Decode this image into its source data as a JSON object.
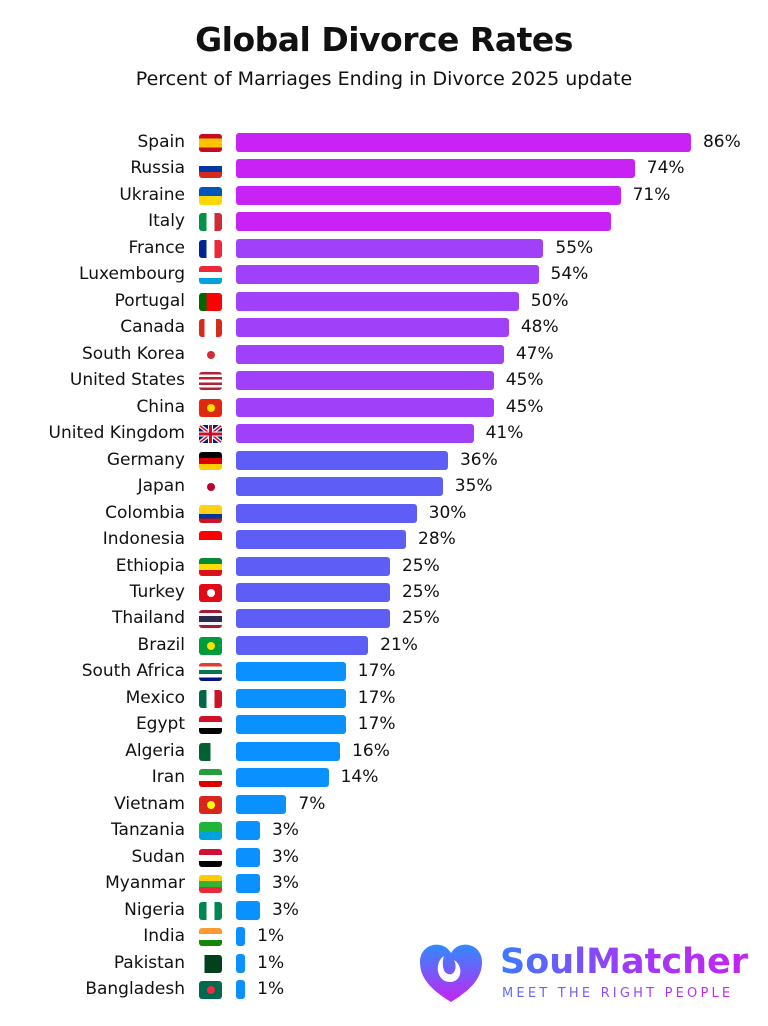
{
  "header": {
    "title": "Global Divorce Rates",
    "subtitle": "Percent of Marriages Ending in Divorce 2025 update"
  },
  "chart_data": {
    "type": "bar",
    "orientation": "horizontal",
    "title": "Global Divorce Rates",
    "subtitle": "Percent of Marriages Ending in Divorce 2025 update",
    "xlabel": "",
    "ylabel": "",
    "grid": false,
    "categories": [
      "Spain",
      "Russia",
      "Ukraine",
      "Italy",
      "France",
      "Luxembourg",
      "Portugal",
      "Canada",
      "South Korea",
      "United States",
      "China",
      "United Kingdom",
      "Germany",
      "Japan",
      "Colombia",
      "Indonesia",
      "Ethiopia",
      "Turkey",
      "Thailand",
      "Brazil",
      "South Africa",
      "Mexico",
      "Egypt",
      "Algeria",
      "Iran",
      "Vietnam",
      "Tanzania",
      "Sudan",
      "Myanmar",
      "Nigeria",
      "India",
      "Pakistan",
      "Bangladesh"
    ],
    "values": [
      86,
      74,
      71,
      69,
      55,
      54,
      50,
      48,
      47,
      45,
      45,
      41,
      36,
      35,
      30,
      28,
      25,
      25,
      25,
      21,
      17,
      17,
      17,
      16,
      14,
      7,
      3,
      3,
      3,
      3,
      1,
      1,
      1
    ],
    "labels": [
      "86%",
      "74%",
      "71%",
      "",
      "55%",
      "54%",
      "50%",
      "48%",
      "47%",
      "45%",
      "45%",
      "41%",
      "36%",
      "35%",
      "30%",
      "28%",
      "25%",
      "25%",
      "25%",
      "21%",
      "17%",
      "17%",
      "17%",
      "16%",
      "14%",
      "7%",
      "3%",
      "3%",
      "3%",
      "3%",
      "1%",
      "1%",
      "1%"
    ],
    "color_groups": [
      {
        "color": "#c822f5",
        "from": 0,
        "to": 3
      },
      {
        "color": "#a040f8",
        "from": 4,
        "to": 11
      },
      {
        "color": "#5e5ef7",
        "from": 12,
        "to": 19
      },
      {
        "color": "#0a90ff",
        "from": 20,
        "to": 32
      }
    ]
  },
  "logo": {
    "name": "SoulMatcher",
    "tagline": "MEET THE RIGHT PEOPLE",
    "icon": "heart-logo-icon"
  }
}
